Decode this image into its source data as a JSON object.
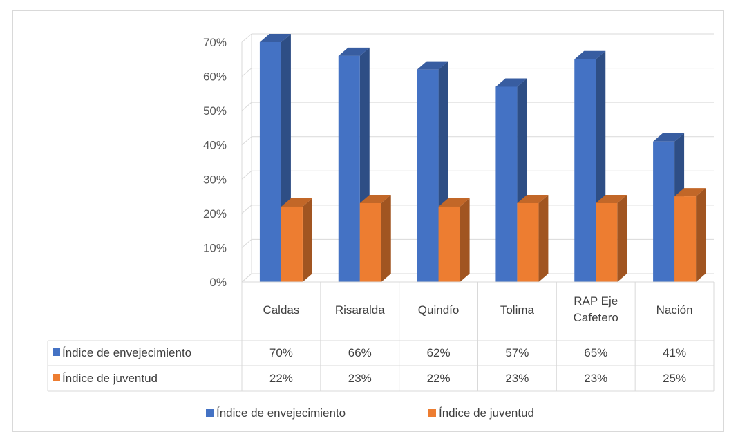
{
  "colors": {
    "series_1": "#4472c4",
    "series_2": "#ed7d31",
    "gridline": "#d9d9d9",
    "text": "#404040"
  },
  "chart_data": {
    "type": "bar",
    "style": "3d-clustered-column-with-data-table",
    "categories": [
      "Caldas",
      "Risaralda",
      "Quindío",
      "Tolima",
      "RAP Eje Cafetero",
      "Nación"
    ],
    "category_lines": [
      [
        "Caldas"
      ],
      [
        "Risaralda"
      ],
      [
        "Quindío"
      ],
      [
        "Tolima"
      ],
      [
        "RAP Eje",
        "Cafetero"
      ],
      [
        "Nación"
      ]
    ],
    "series": [
      {
        "name": "Índice de envejecimiento",
        "values": [
          0.7,
          0.66,
          0.62,
          0.57,
          0.65,
          0.41
        ],
        "labels": [
          "70%",
          "66%",
          "62%",
          "57%",
          "65%",
          "41%"
        ]
      },
      {
        "name": "Índice de juventud",
        "values": [
          0.22,
          0.23,
          0.22,
          0.23,
          0.23,
          0.25
        ],
        "labels": [
          "22%",
          "23%",
          "22%",
          "23%",
          "23%",
          "25%"
        ]
      }
    ],
    "ylim": [
      0,
      0.7
    ],
    "yticks": [
      "0%",
      "10%",
      "20%",
      "30%",
      "40%",
      "50%",
      "60%",
      "70%"
    ],
    "grid": true,
    "data_table": true,
    "legend_position": "bottom"
  }
}
